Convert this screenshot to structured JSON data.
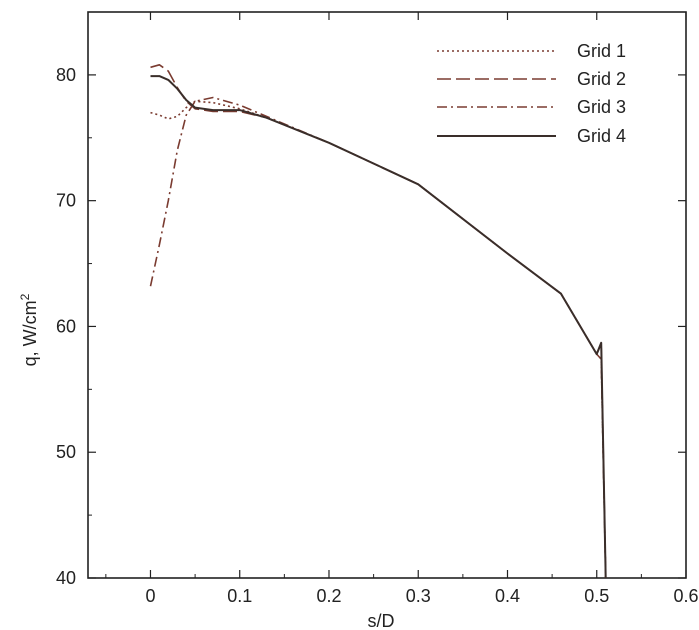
{
  "chart_data": {
    "type": "line",
    "title": "",
    "xlabel": "s/D",
    "ylabel": "q, W/cm",
    "ylabel_sup": "2",
    "xlim": [
      -0.07,
      0.6
    ],
    "ylim": [
      40,
      85
    ],
    "x_ticks": [
      0,
      0.1,
      0.2,
      0.3,
      0.4,
      0.5,
      0.6
    ],
    "x_tick_labels": [
      "0",
      "0.1",
      "0.2",
      "0.3",
      "0.4",
      "0.5",
      "0.6"
    ],
    "y_ticks": [
      40,
      50,
      60,
      70,
      80
    ],
    "y_tick_labels": [
      "40",
      "50",
      "60",
      "70",
      "80"
    ],
    "grid": false,
    "legend_position": "top-right",
    "series": [
      {
        "name": "Grid 1",
        "dash": "dotted",
        "color": "#7a3b30",
        "x": [
          0.0,
          0.01,
          0.02,
          0.03,
          0.04,
          0.05,
          0.07,
          0.1,
          0.13,
          0.2,
          0.3,
          0.4,
          0.46,
          0.5,
          0.505,
          0.51
        ],
        "y": [
          77.0,
          76.8,
          76.5,
          76.7,
          77.4,
          77.9,
          77.8,
          77.3,
          76.6,
          74.6,
          71.3,
          65.8,
          62.6,
          57.8,
          57.4,
          40.0
        ]
      },
      {
        "name": "Grid 2",
        "dash": "long-dash",
        "color": "#7a3b30",
        "x": [
          0.0,
          0.01,
          0.02,
          0.03,
          0.04,
          0.05,
          0.07,
          0.1,
          0.13,
          0.2,
          0.3,
          0.4,
          0.46,
          0.5,
          0.505,
          0.51
        ],
        "y": [
          80.6,
          80.8,
          80.3,
          79.0,
          77.9,
          77.3,
          77.1,
          77.1,
          76.6,
          74.6,
          71.3,
          65.8,
          62.6,
          57.8,
          58.6,
          40.0
        ]
      },
      {
        "name": "Grid 3",
        "dash": "dash-dot",
        "color": "#7a3b30",
        "x": [
          0.0,
          0.01,
          0.02,
          0.03,
          0.04,
          0.05,
          0.07,
          0.1,
          0.13,
          0.2,
          0.3,
          0.4,
          0.46,
          0.5,
          0.505,
          0.51
        ],
        "y": [
          63.2,
          66.5,
          70.0,
          74.0,
          76.8,
          77.9,
          78.2,
          77.6,
          76.7,
          74.6,
          71.3,
          65.8,
          62.6,
          57.8,
          57.4,
          40.0
        ]
      },
      {
        "name": "Grid 4",
        "dash": "solid",
        "color": "#3a2e2a",
        "x": [
          0.0,
          0.01,
          0.02,
          0.03,
          0.04,
          0.05,
          0.07,
          0.1,
          0.13,
          0.2,
          0.3,
          0.4,
          0.46,
          0.5,
          0.505,
          0.51
        ],
        "y": [
          79.9,
          79.9,
          79.6,
          78.9,
          78.0,
          77.4,
          77.2,
          77.2,
          76.6,
          74.6,
          71.3,
          65.8,
          62.6,
          57.8,
          58.7,
          40.0
        ]
      }
    ]
  }
}
